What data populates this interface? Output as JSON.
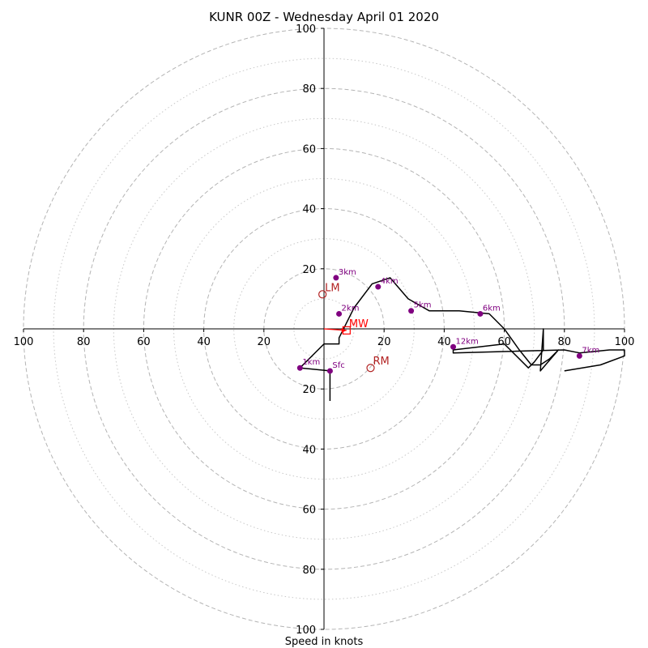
{
  "chart_data": {
    "type": "line",
    "title": "KUNR 00Z - Wednesday April 01 2020",
    "xlabel": "Speed in knots",
    "ylabel": "",
    "xlim": [
      -100,
      100
    ],
    "ylim": [
      -100,
      100
    ],
    "grid": true,
    "ring_ticks": [
      20,
      40,
      60,
      80,
      100
    ],
    "x_tick_labels": [
      "100",
      "80",
      "60",
      "40",
      "20",
      "20",
      "40",
      "60",
      "80",
      "100"
    ],
    "y_tick_labels": [
      "100",
      "80",
      "60",
      "40",
      "20",
      "20",
      "40",
      "60",
      "80",
      "100"
    ],
    "hodograph": {
      "name": "",
      "color": "#000000",
      "x": [
        2,
        2,
        -8,
        0,
        5,
        5,
        10,
        16,
        22,
        28,
        35,
        45,
        55,
        60,
        65,
        69,
        72,
        75,
        78,
        72,
        73,
        73,
        70,
        68,
        60,
        43,
        43,
        80,
        85,
        95,
        100,
        100,
        92,
        80
      ],
      "y": [
        -24,
        -14,
        -13,
        -5,
        -5,
        -3,
        7,
        15,
        17,
        10,
        6,
        6,
        5,
        0,
        -7,
        -12,
        -12,
        -10,
        -7,
        -14,
        0,
        -7,
        -11,
        -13,
        -5,
        -7,
        -8,
        -7,
        -8,
        -7,
        -7,
        -9,
        -12,
        -14
      ]
    },
    "height_markers": [
      {
        "label": "Sfc",
        "x": 2,
        "y": -14,
        "color": "#800080"
      },
      {
        "label": "1km",
        "x": -8,
        "y": -13,
        "color": "#800080"
      },
      {
        "label": "2km",
        "x": 5,
        "y": 5,
        "color": "#800080"
      },
      {
        "label": "3km",
        "x": 4,
        "y": 17,
        "color": "#800080"
      },
      {
        "label": "4km",
        "x": 18,
        "y": 14,
        "color": "#800080"
      },
      {
        "label": "5km",
        "x": 29,
        "y": 6,
        "color": "#800080"
      },
      {
        "label": "6km",
        "x": 52,
        "y": 5,
        "color": "#800080"
      },
      {
        "label": "7km",
        "x": 85,
        "y": -9,
        "color": "#800080"
      },
      {
        "label": "12km",
        "x": 43,
        "y": -6,
        "color": "#800080"
      }
    ],
    "motion_markers": [
      {
        "label": "LM",
        "x": -0.5,
        "y": 11.5,
        "marker": "circle",
        "color": "#b22222"
      },
      {
        "label": "RM",
        "x": 15.5,
        "y": -13,
        "marker": "circle",
        "color": "#b22222"
      },
      {
        "label": "MW",
        "x": 7.5,
        "y": -0.5,
        "marker": "square",
        "color": "#ff0000"
      }
    ],
    "mean_wind_arrow": {
      "x": 7.5,
      "y": -0.5,
      "color": "#ff0000"
    }
  }
}
